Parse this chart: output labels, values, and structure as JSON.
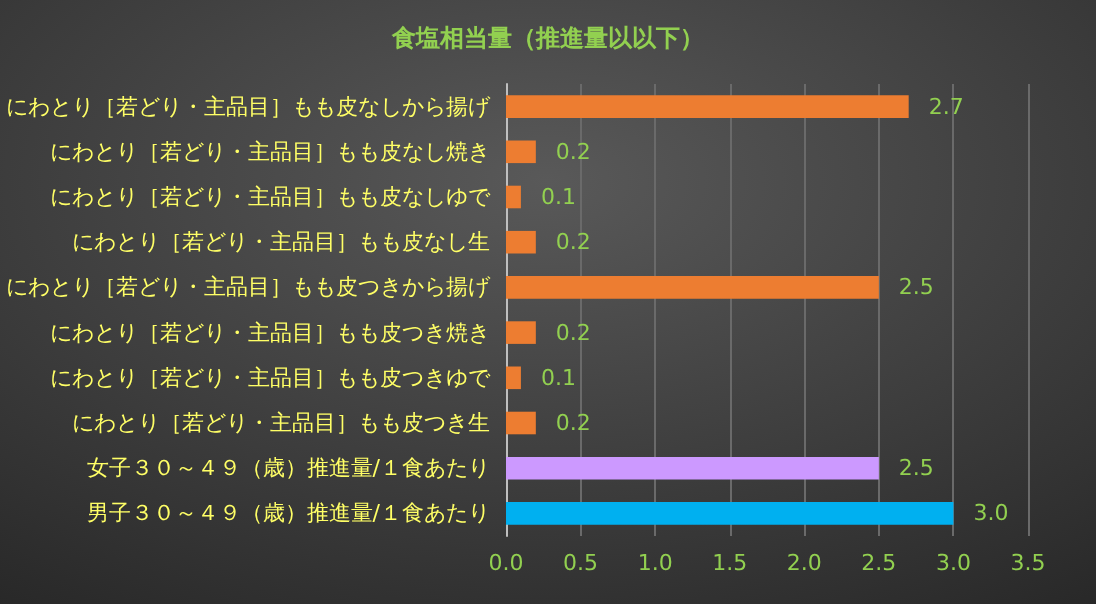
{
  "chart_data": {
    "type": "bar",
    "orientation": "horizontal",
    "title": "食塩相当量（推進量以以下）",
    "categories": [
      "にわとり［若どり・主品目］もも皮なしから揚げ",
      "にわとり［若どり・主品目］もも皮なし焼き",
      "にわとり［若どり・主品目］もも皮なしゆで",
      "にわとり［若どり・主品目］もも皮なし生",
      "にわとり［若どり・主品目］もも皮つきから揚げ",
      "にわとり［若どり・主品目］もも皮つき焼き",
      "にわとり［若どり・主品目］もも皮つきゆで",
      "にわとり［若どり・主品目］もも皮つき生",
      "女子３０～４９（歳）推進量/１食あたり",
      "男子３０～４９（歳）推進量/１食あたり"
    ],
    "values": [
      2.7,
      0.2,
      0.1,
      0.2,
      2.5,
      0.2,
      0.1,
      0.2,
      2.5,
      3.0
    ],
    "value_labels": [
      "2.7",
      "0.2",
      "0.1",
      "0.2",
      "2.5",
      "0.2",
      "0.1",
      "0.2",
      "2.5",
      "3.0"
    ],
    "colors": [
      "#ed7d31",
      "#ed7d31",
      "#ed7d31",
      "#ed7d31",
      "#ed7d31",
      "#ed7d31",
      "#ed7d31",
      "#ed7d31",
      "#cc99ff",
      "#00b0f0"
    ],
    "xlim": [
      0,
      3.5
    ],
    "xticks": [
      {
        "value": 0,
        "label": "0.0"
      },
      {
        "value": 0.5,
        "label": "0.5"
      },
      {
        "value": 1,
        "label": "1.0"
      },
      {
        "value": 1.5,
        "label": "1.5"
      },
      {
        "value": 2,
        "label": "2.0"
      },
      {
        "value": 2.5,
        "label": "2.5"
      },
      {
        "value": 3,
        "label": "3.0"
      },
      {
        "value": 3.5,
        "label": "3.5"
      }
    ],
    "grid": "x"
  }
}
